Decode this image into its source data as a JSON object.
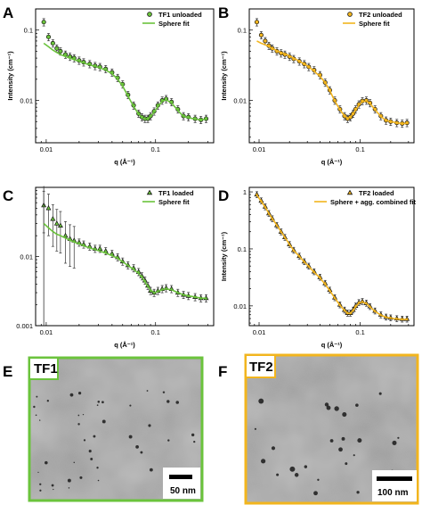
{
  "panel_labels": {
    "A": "A",
    "B": "B",
    "C": "C",
    "D": "D",
    "E": "E",
    "F": "F"
  },
  "colors": {
    "green": "#6bc33c",
    "gold": "#f2b51e",
    "marker": "#111111"
  },
  "chart_data": [
    {
      "id": "A",
      "type": "scatter",
      "xscale": "log",
      "yscale": "log",
      "xlim": [
        0.008,
        0.34
      ],
      "ylim": [
        0.0025,
        0.2
      ],
      "xticks": [
        {
          "v": 0.01,
          "t": "0.01"
        },
        {
          "v": 0.1,
          "t": "0.1"
        }
      ],
      "yticks": [
        {
          "v": 0.01,
          "t": "0.01"
        },
        {
          "v": 0.1,
          "t": "0.1"
        }
      ],
      "xlabel": "q (Å⁻¹)",
      "ylabel": "Intensity (cm⁻¹)",
      "marker": "circle",
      "fit_color": "green",
      "legend": [
        "TF1 unloaded",
        "Sphere fit"
      ],
      "x": [
        0.0095,
        0.0105,
        0.0115,
        0.0125,
        0.0135,
        0.015,
        0.0165,
        0.018,
        0.02,
        0.022,
        0.025,
        0.028,
        0.031,
        0.035,
        0.04,
        0.045,
        0.05,
        0.056,
        0.063,
        0.07,
        0.075,
        0.08,
        0.085,
        0.09,
        0.097,
        0.105,
        0.115,
        0.125,
        0.14,
        0.16,
        0.18,
        0.2,
        0.23,
        0.26,
        0.29
      ],
      "y": [
        0.13,
        0.08,
        0.065,
        0.055,
        0.05,
        0.045,
        0.042,
        0.04,
        0.037,
        0.035,
        0.033,
        0.031,
        0.03,
        0.028,
        0.025,
        0.021,
        0.017,
        0.012,
        0.0085,
        0.0065,
        0.0058,
        0.0055,
        0.0055,
        0.006,
        0.007,
        0.0085,
        0.01,
        0.0105,
        0.0095,
        0.0075,
        0.006,
        0.0058,
        0.0055,
        0.0053,
        0.0055
      ],
      "fit": [
        0.065,
        0.058,
        0.052,
        0.048,
        0.045,
        0.042,
        0.04,
        0.038,
        0.036,
        0.034,
        0.032,
        0.0305,
        0.029,
        0.027,
        0.024,
        0.02,
        0.016,
        0.0115,
        0.0082,
        0.0064,
        0.0057,
        0.0054,
        0.0055,
        0.0059,
        0.0068,
        0.0082,
        0.0097,
        0.0102,
        0.0092,
        0.0072,
        0.0059,
        0.0057,
        0.0054,
        0.0053,
        0.0054
      ]
    },
    {
      "id": "B",
      "type": "scatter",
      "xscale": "log",
      "yscale": "log",
      "xlim": [
        0.008,
        0.34
      ],
      "ylim": [
        0.0025,
        0.2
      ],
      "xticks": [
        {
          "v": 0.01,
          "t": "0.01"
        },
        {
          "v": 0.1,
          "t": "0.1"
        }
      ],
      "yticks": [
        {
          "v": 0.01,
          "t": "0.01"
        },
        {
          "v": 0.1,
          "t": "0.1"
        }
      ],
      "xlabel": "q (Å⁻¹)",
      "ylabel": "Intensity (cm⁻¹)",
      "marker": "circle",
      "fit_color": "gold",
      "legend": [
        "TF2 unloaded",
        "Sphere fit"
      ],
      "x": [
        0.0095,
        0.0105,
        0.0115,
        0.0125,
        0.0135,
        0.015,
        0.0165,
        0.018,
        0.02,
        0.022,
        0.025,
        0.028,
        0.031,
        0.035,
        0.04,
        0.045,
        0.05,
        0.056,
        0.063,
        0.07,
        0.075,
        0.08,
        0.085,
        0.09,
        0.097,
        0.105,
        0.115,
        0.125,
        0.14,
        0.16,
        0.18,
        0.2,
        0.23,
        0.26,
        0.29
      ],
      "y": [
        0.13,
        0.085,
        0.07,
        0.06,
        0.055,
        0.05,
        0.047,
        0.045,
        0.042,
        0.039,
        0.036,
        0.033,
        0.03,
        0.027,
        0.023,
        0.018,
        0.014,
        0.01,
        0.0075,
        0.006,
        0.0055,
        0.0058,
        0.0065,
        0.0075,
        0.0088,
        0.0098,
        0.01,
        0.0092,
        0.0075,
        0.006,
        0.0052,
        0.005,
        0.0048,
        0.0047,
        0.0048
      ],
      "fit": [
        0.07,
        0.065,
        0.062,
        0.058,
        0.055,
        0.051,
        0.048,
        0.046,
        0.043,
        0.04,
        0.036,
        0.033,
        0.03,
        0.026,
        0.022,
        0.018,
        0.0138,
        0.0098,
        0.0074,
        0.006,
        0.0056,
        0.0058,
        0.0064,
        0.0073,
        0.0086,
        0.0096,
        0.0098,
        0.009,
        0.0074,
        0.0059,
        0.0052,
        0.005,
        0.0048,
        0.0047,
        0.0047
      ]
    },
    {
      "id": "C",
      "type": "scatter",
      "xscale": "log",
      "yscale": "log",
      "xlim": [
        0.008,
        0.34
      ],
      "ylim": [
        0.001,
        0.1
      ],
      "xticks": [
        {
          "v": 0.01,
          "t": "0.01"
        },
        {
          "v": 0.1,
          "t": "0.1"
        }
      ],
      "yticks": [
        {
          "v": 0.001,
          "t": "0.001"
        },
        {
          "v": 0.01,
          "t": "0.01"
        }
      ],
      "xlabel": "q (Å⁻¹)",
      "ylabel": "",
      "marker": "triangle",
      "fit_color": "green",
      "legend": [
        "TF1 loaded",
        "Sphere fit"
      ],
      "x": [
        0.0095,
        0.0105,
        0.0115,
        0.0125,
        0.0135,
        0.015,
        0.0165,
        0.018,
        0.02,
        0.022,
        0.025,
        0.028,
        0.031,
        0.035,
        0.04,
        0.045,
        0.05,
        0.056,
        0.063,
        0.07,
        0.075,
        0.08,
        0.085,
        0.09,
        0.097,
        0.105,
        0.115,
        0.125,
        0.14,
        0.16,
        0.18,
        0.2,
        0.23,
        0.26,
        0.29
      ],
      "y": [
        0.055,
        0.05,
        0.035,
        0.03,
        0.028,
        0.02,
        0.018,
        0.017,
        0.016,
        0.015,
        0.014,
        0.013,
        0.013,
        0.012,
        0.011,
        0.0098,
        0.0085,
        0.0075,
        0.0068,
        0.006,
        0.0052,
        0.0045,
        0.0038,
        0.0032,
        0.003,
        0.0032,
        0.0034,
        0.0035,
        0.0034,
        0.003,
        0.0028,
        0.0027,
        0.0026,
        0.0025,
        0.0025
      ],
      "fit": [
        0.03,
        0.026,
        0.023,
        0.021,
        0.02,
        0.0185,
        0.0172,
        0.0162,
        0.0152,
        0.0143,
        0.0133,
        0.0126,
        0.012,
        0.0112,
        0.0103,
        0.0094,
        0.0084,
        0.0074,
        0.0065,
        0.0057,
        0.005,
        0.0043,
        0.0037,
        0.0033,
        0.003,
        0.0031,
        0.0033,
        0.0034,
        0.0033,
        0.003,
        0.0028,
        0.0027,
        0.0026,
        0.0025,
        0.0025
      ]
    },
    {
      "id": "D",
      "type": "scatter",
      "xscale": "log",
      "yscale": "log",
      "xlim": [
        0.008,
        0.34
      ],
      "ylim": [
        0.0045,
        1.2
      ],
      "xticks": [
        {
          "v": 0.01,
          "t": "0.01"
        },
        {
          "v": 0.1,
          "t": "0.1"
        }
      ],
      "yticks": [
        {
          "v": 0.01,
          "t": "0.01"
        },
        {
          "v": 0.1,
          "t": "0.1"
        },
        {
          "v": 1,
          "t": "1"
        }
      ],
      "xlabel": "q (Å⁻¹)",
      "ylabel": "Intensity (cm⁻¹)",
      "marker": "triangle",
      "fit_color": "gold",
      "legend": [
        "TF2 loaded",
        "Sphere + agg. combined fit"
      ],
      "x": [
        0.0095,
        0.0105,
        0.0115,
        0.0125,
        0.0135,
        0.015,
        0.0165,
        0.018,
        0.02,
        0.022,
        0.025,
        0.028,
        0.031,
        0.035,
        0.04,
        0.045,
        0.05,
        0.056,
        0.063,
        0.07,
        0.075,
        0.08,
        0.085,
        0.09,
        0.097,
        0.105,
        0.115,
        0.125,
        0.14,
        0.16,
        0.18,
        0.2,
        0.23,
        0.26,
        0.29
      ],
      "y": [
        0.9,
        0.7,
        0.55,
        0.42,
        0.34,
        0.26,
        0.2,
        0.16,
        0.12,
        0.095,
        0.075,
        0.06,
        0.05,
        0.04,
        0.032,
        0.025,
        0.019,
        0.014,
        0.0105,
        0.0085,
        0.0075,
        0.0075,
        0.0085,
        0.01,
        0.0115,
        0.012,
        0.0112,
        0.0098,
        0.0082,
        0.007,
        0.0064,
        0.0062,
        0.006,
        0.0059,
        0.0059
      ],
      "fit": [
        0.88,
        0.68,
        0.54,
        0.42,
        0.34,
        0.26,
        0.2,
        0.16,
        0.12,
        0.094,
        0.074,
        0.059,
        0.049,
        0.039,
        0.031,
        0.024,
        0.0185,
        0.0138,
        0.0103,
        0.0083,
        0.0074,
        0.0074,
        0.0083,
        0.0097,
        0.0112,
        0.0117,
        0.011,
        0.0096,
        0.008,
        0.0069,
        0.0063,
        0.0061,
        0.0059,
        0.0058,
        0.0058
      ]
    }
  ],
  "images": [
    {
      "id": "E",
      "label": "TF1",
      "scale_bar": "50 nm",
      "border": "green"
    },
    {
      "id": "F",
      "label": "TF2",
      "scale_bar": "100 nm",
      "border": "gold"
    }
  ]
}
